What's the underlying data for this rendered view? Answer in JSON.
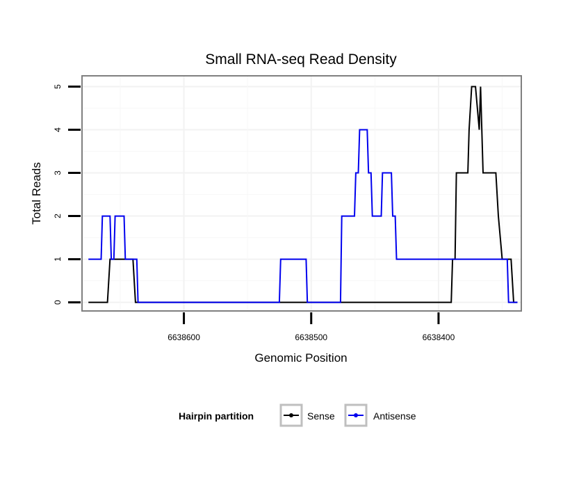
{
  "chart_data": {
    "type": "line",
    "title": "Small RNA-seq Read Density",
    "xlabel": "Genomic Position",
    "ylabel": "Total Reads",
    "xlim": [
      6638680,
      6638335
    ],
    "ylim": [
      -0.2,
      5.25
    ],
    "x_reversed": true,
    "x_ticks": [
      6638600,
      6638500,
      6638400
    ],
    "x_tick_labels": [
      "6638600",
      "6638500",
      "6638400"
    ],
    "y_ticks": [
      0,
      1,
      2,
      3,
      4,
      5
    ],
    "y_tick_labels": [
      "0",
      "1",
      "2",
      "3",
      "4",
      "5"
    ],
    "grid": true,
    "legend": {
      "title": "Hairpin partition",
      "position": "bottom"
    },
    "series": [
      {
        "name": "Sense",
        "color": "#000000",
        "x": [
          6638675,
          6638660,
          6638658,
          6638640,
          6638638,
          6638390,
          6638389,
          6638387,
          6638386,
          6638377,
          6638376,
          6638374,
          6638373,
          6638371,
          6638368,
          6638367,
          6638365,
          6638364,
          6638355,
          6638353,
          6638350,
          6638349,
          6638343,
          6638341,
          6638338
        ],
        "values": [
          0,
          0,
          1,
          1,
          0,
          0,
          1,
          1,
          3,
          3,
          4,
          5,
          5,
          5,
          4,
          5,
          3,
          3,
          3,
          2,
          1,
          1,
          1,
          0,
          0
        ]
      },
      {
        "name": "Antisense",
        "color": "#0000ee",
        "x": [
          6638675,
          6638665,
          6638664,
          6638658,
          6638657,
          6638655,
          6638654,
          6638647,
          6638646,
          6638637,
          6638636,
          6638525,
          6638524,
          6638504,
          6638503,
          6638477,
          6638476,
          6638466,
          6638465,
          6638463,
          6638462,
          6638456,
          6638455,
          6638453,
          6638452,
          6638445,
          6638444,
          6638437,
          6638436,
          6638434,
          6638433,
          6638425,
          6638424,
          6638415,
          6638414,
          6638406,
          6638405,
          6638397,
          6638396,
          6638393,
          6638392,
          6638391,
          6638390,
          6638385,
          6638384,
          6638377,
          6638376,
          6638346,
          6638345,
          6638338
        ],
        "values": [
          1,
          1,
          2,
          2,
          1,
          1,
          2,
          2,
          1,
          1,
          0,
          0,
          1,
          1,
          0,
          0,
          2,
          2,
          3,
          3,
          4,
          4,
          3,
          3,
          2,
          2,
          3,
          3,
          2,
          2,
          1,
          1,
          1,
          1,
          1,
          1,
          1,
          1,
          1,
          1,
          1,
          1,
          1,
          1,
          1,
          1,
          1,
          1,
          0,
          0
        ]
      }
    ]
  }
}
